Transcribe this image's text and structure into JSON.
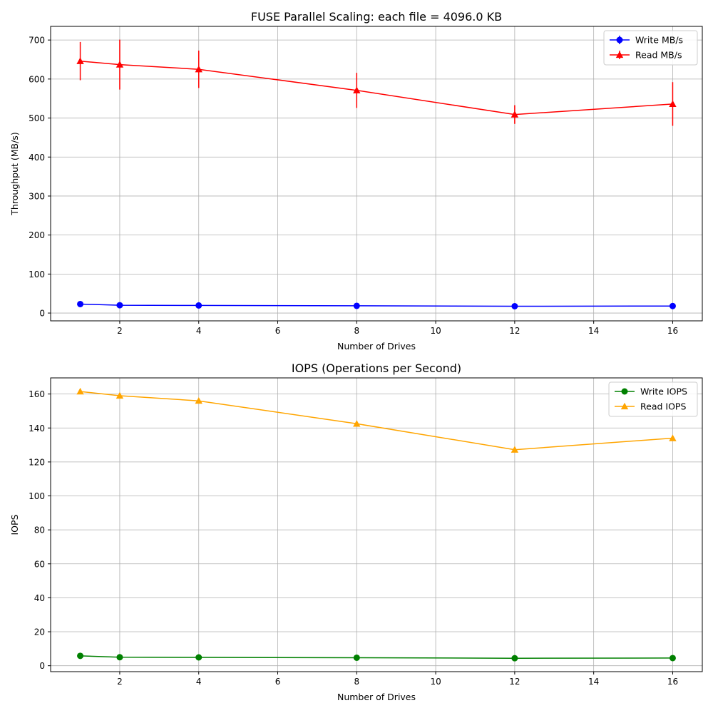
{
  "chart_data": [
    {
      "type": "line",
      "title": "FUSE Parallel Scaling: each file = 4096.0 KB",
      "xlabel": "Number of Drives",
      "ylabel": "Throughput (MB/s)",
      "xlim": [
        0.25,
        16.75
      ],
      "ylim": [
        -20,
        735
      ],
      "xticks": [
        2,
        4,
        6,
        8,
        10,
        12,
        14,
        16
      ],
      "yticks": [
        0,
        100,
        200,
        300,
        400,
        500,
        600,
        700
      ],
      "grid": true,
      "legend_position": "top-right",
      "x": [
        1,
        2,
        4,
        8,
        12,
        16
      ],
      "series": [
        {
          "name": "Write MB/s",
          "color": "#0000ff",
          "marker": "circle",
          "values": [
            23,
            20,
            19.5,
            18.5,
            17.5,
            18
          ],
          "errors": [
            1.5,
            1.5,
            1,
            1,
            1,
            1
          ]
        },
        {
          "name": "Read MB/s",
          "color": "#ff0000",
          "marker": "triangle",
          "values": [
            646,
            637,
            625,
            571,
            509,
            536
          ],
          "errors": [
            49,
            64,
            48,
            45,
            24,
            56
          ]
        }
      ]
    },
    {
      "type": "line",
      "title": "IOPS (Operations per Second)",
      "xlabel": "Number of Drives",
      "ylabel": "IOPS",
      "xlim": [
        0.25,
        16.75
      ],
      "ylim": [
        -3.5,
        169.5
      ],
      "xticks": [
        2,
        4,
        6,
        8,
        10,
        12,
        14,
        16
      ],
      "yticks": [
        0,
        20,
        40,
        60,
        80,
        100,
        120,
        140,
        160
      ],
      "grid": true,
      "legend_position": "top-right",
      "x": [
        1,
        2,
        4,
        8,
        12,
        16
      ],
      "series": [
        {
          "name": "Write IOPS",
          "color": "#008000",
          "marker": "circle",
          "values": [
            5.8,
            5,
            4.9,
            4.7,
            4.4,
            4.5
          ]
        },
        {
          "name": "Read IOPS",
          "color": "#ffa500",
          "marker": "triangle",
          "values": [
            161.5,
            159,
            156,
            142.5,
            127.2,
            134
          ]
        }
      ]
    }
  ]
}
